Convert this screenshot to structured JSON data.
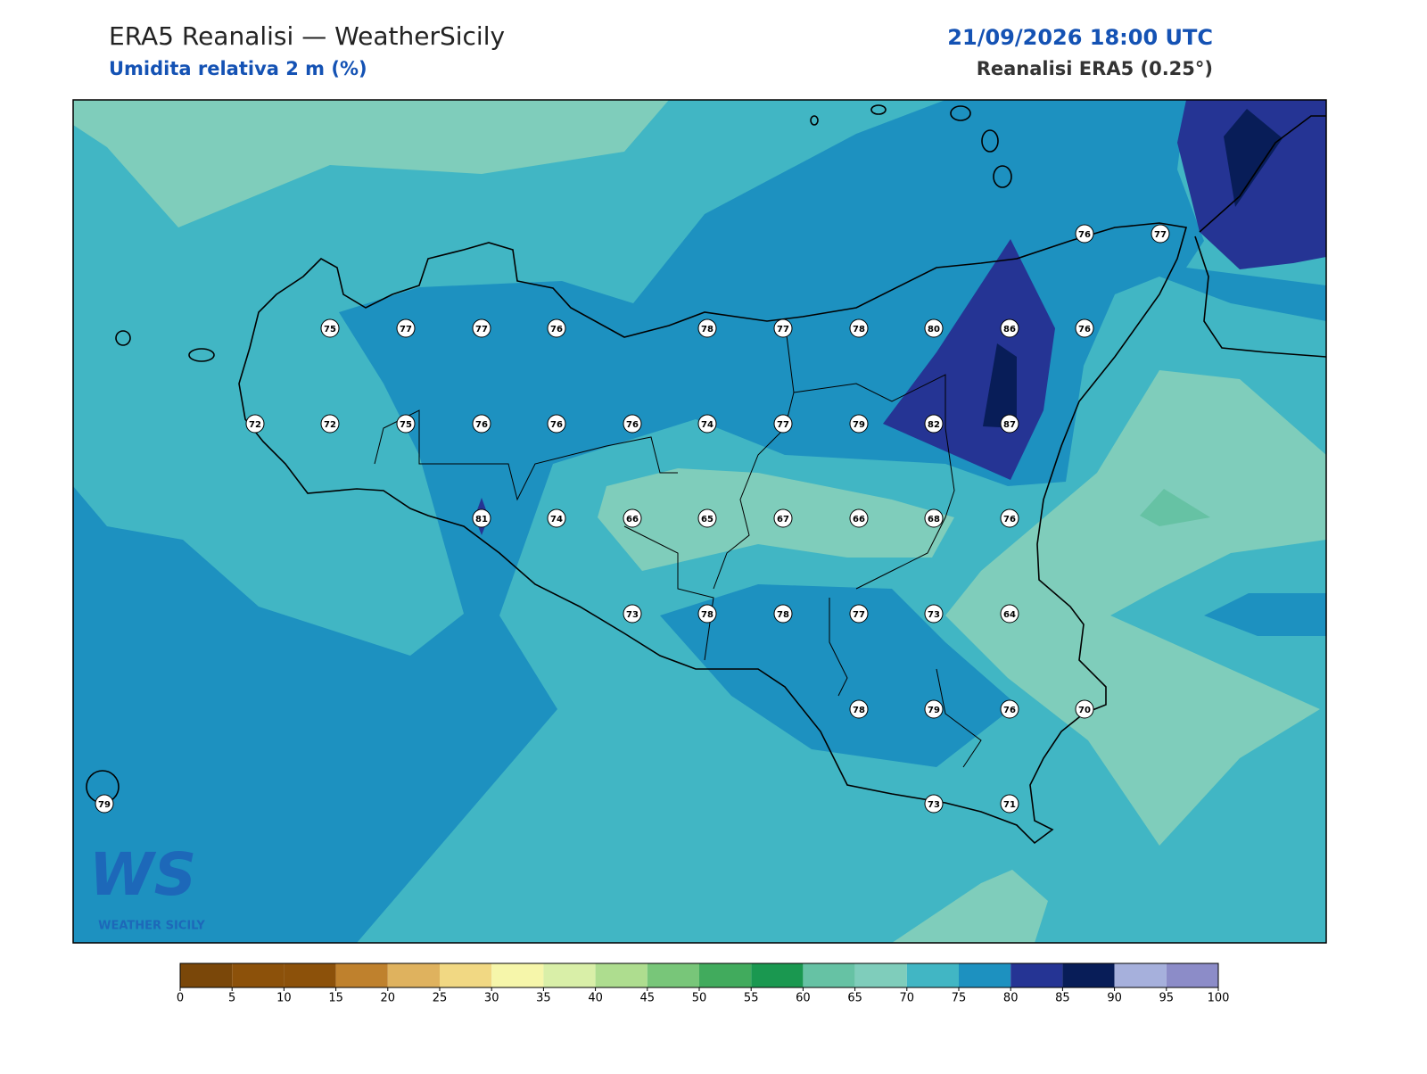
{
  "header": {
    "title": "ERA5 Reanalisi — WeatherSicily",
    "subtitle": "Umidita relativa 2 m (%)",
    "datetime": "21/09/2026 18:00 UTC",
    "source": "Reanalisi ERA5 (0.25°)"
  },
  "stations": [
    76,
    77,
    75,
    77,
    77,
    76,
    78,
    77,
    78,
    80,
    86,
    76,
    72,
    72,
    75,
    76,
    76,
    76,
    74,
    77,
    79,
    82,
    87,
    81,
    74,
    66,
    65,
    67,
    66,
    68,
    76,
    73,
    78,
    78,
    77,
    73,
    64,
    78,
    79,
    76,
    70,
    79,
    73,
    71
  ],
  "colorbar": {
    "ticks": [
      0,
      5,
      10,
      15,
      20,
      25,
      30,
      35,
      40,
      45,
      50,
      55,
      60,
      65,
      70,
      75,
      80,
      85,
      90,
      95,
      100
    ],
    "colors": [
      "#7a4709",
      "#8c510a",
      "#8c510a",
      "#bf812d",
      "#dfb25e",
      "#f1d883",
      "#f6f6aa",
      "#d9efa8",
      "#aedd8f",
      "#78c679",
      "#41ab5d",
      "#1a9850",
      "#66c2a4",
      "#7fcdbb",
      "#41b6c4",
      "#1d91c0",
      "#253494",
      "#081d58",
      "#a6b0dc",
      "#8c8cc8"
    ]
  },
  "logo": {
    "mark": "WS",
    "name": "WEATHER SICILY"
  }
}
